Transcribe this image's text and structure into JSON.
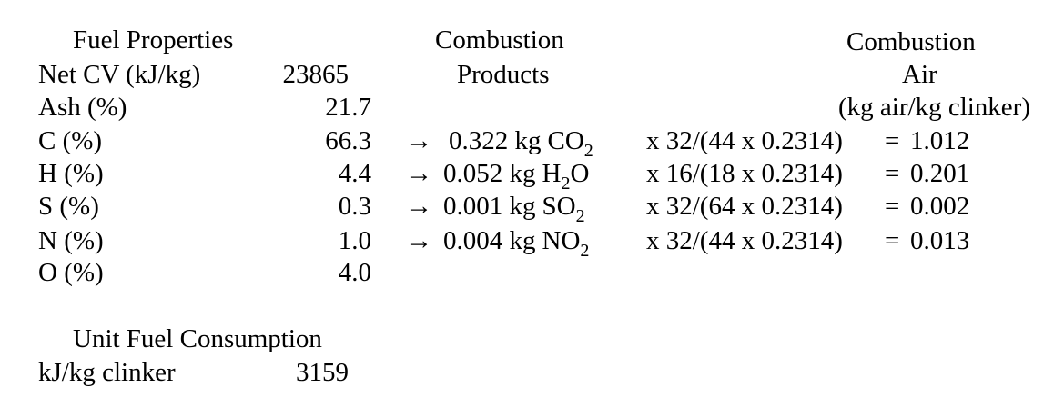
{
  "fuel_properties": {
    "title": "Fuel Properties",
    "rows": [
      {
        "label": "Net CV (kJ/kg)",
        "value": "23865"
      },
      {
        "label": "Ash (%)",
        "value": "21.7"
      },
      {
        "label": "C (%)",
        "value": "66.3"
      },
      {
        "label": "H (%)",
        "value": "4.4"
      },
      {
        "label": "S (%)",
        "value": "0.3"
      },
      {
        "label": "N (%)",
        "value": "1.0"
      },
      {
        "label": "O (%)",
        "value": "4.0"
      }
    ]
  },
  "combustion_products": {
    "title": [
      "Combustion",
      "Products"
    ],
    "rows": [
      {
        "arrow": "→",
        "amount": "0.322 kg",
        "formula": [
          "CO",
          "2"
        ]
      },
      {
        "arrow": "→",
        "amount": "0.052 kg",
        "formula": [
          "H",
          "2",
          "O"
        ]
      },
      {
        "arrow": "→",
        "amount": "0.001 kg",
        "formula": [
          "SO",
          "2"
        ]
      },
      {
        "arrow": "→",
        "amount": "0.004 kg",
        "formula": [
          "NO",
          "2"
        ]
      }
    ]
  },
  "combustion_air": {
    "title": [
      "Combustion",
      "Air",
      "(kg air/kg clinker)"
    ],
    "rows": [
      {
        "expression": "x 32/(44 x 0.2314)",
        "equals": "=",
        "value": "1.012"
      },
      {
        "expression": "x 16/(18 x 0.2314)",
        "equals": "=",
        "value": "0.201"
      },
      {
        "expression": "x 32/(64 x 0.2314)",
        "equals": "=",
        "value": "0.002"
      },
      {
        "expression": "x 32/(44 x 0.2314)",
        "equals": "=",
        "value": "0.013"
      }
    ]
  },
  "unit_fuel_consumption": {
    "title": "Unit Fuel Consumption",
    "label": "kJ/kg clinker",
    "value": "3159"
  }
}
